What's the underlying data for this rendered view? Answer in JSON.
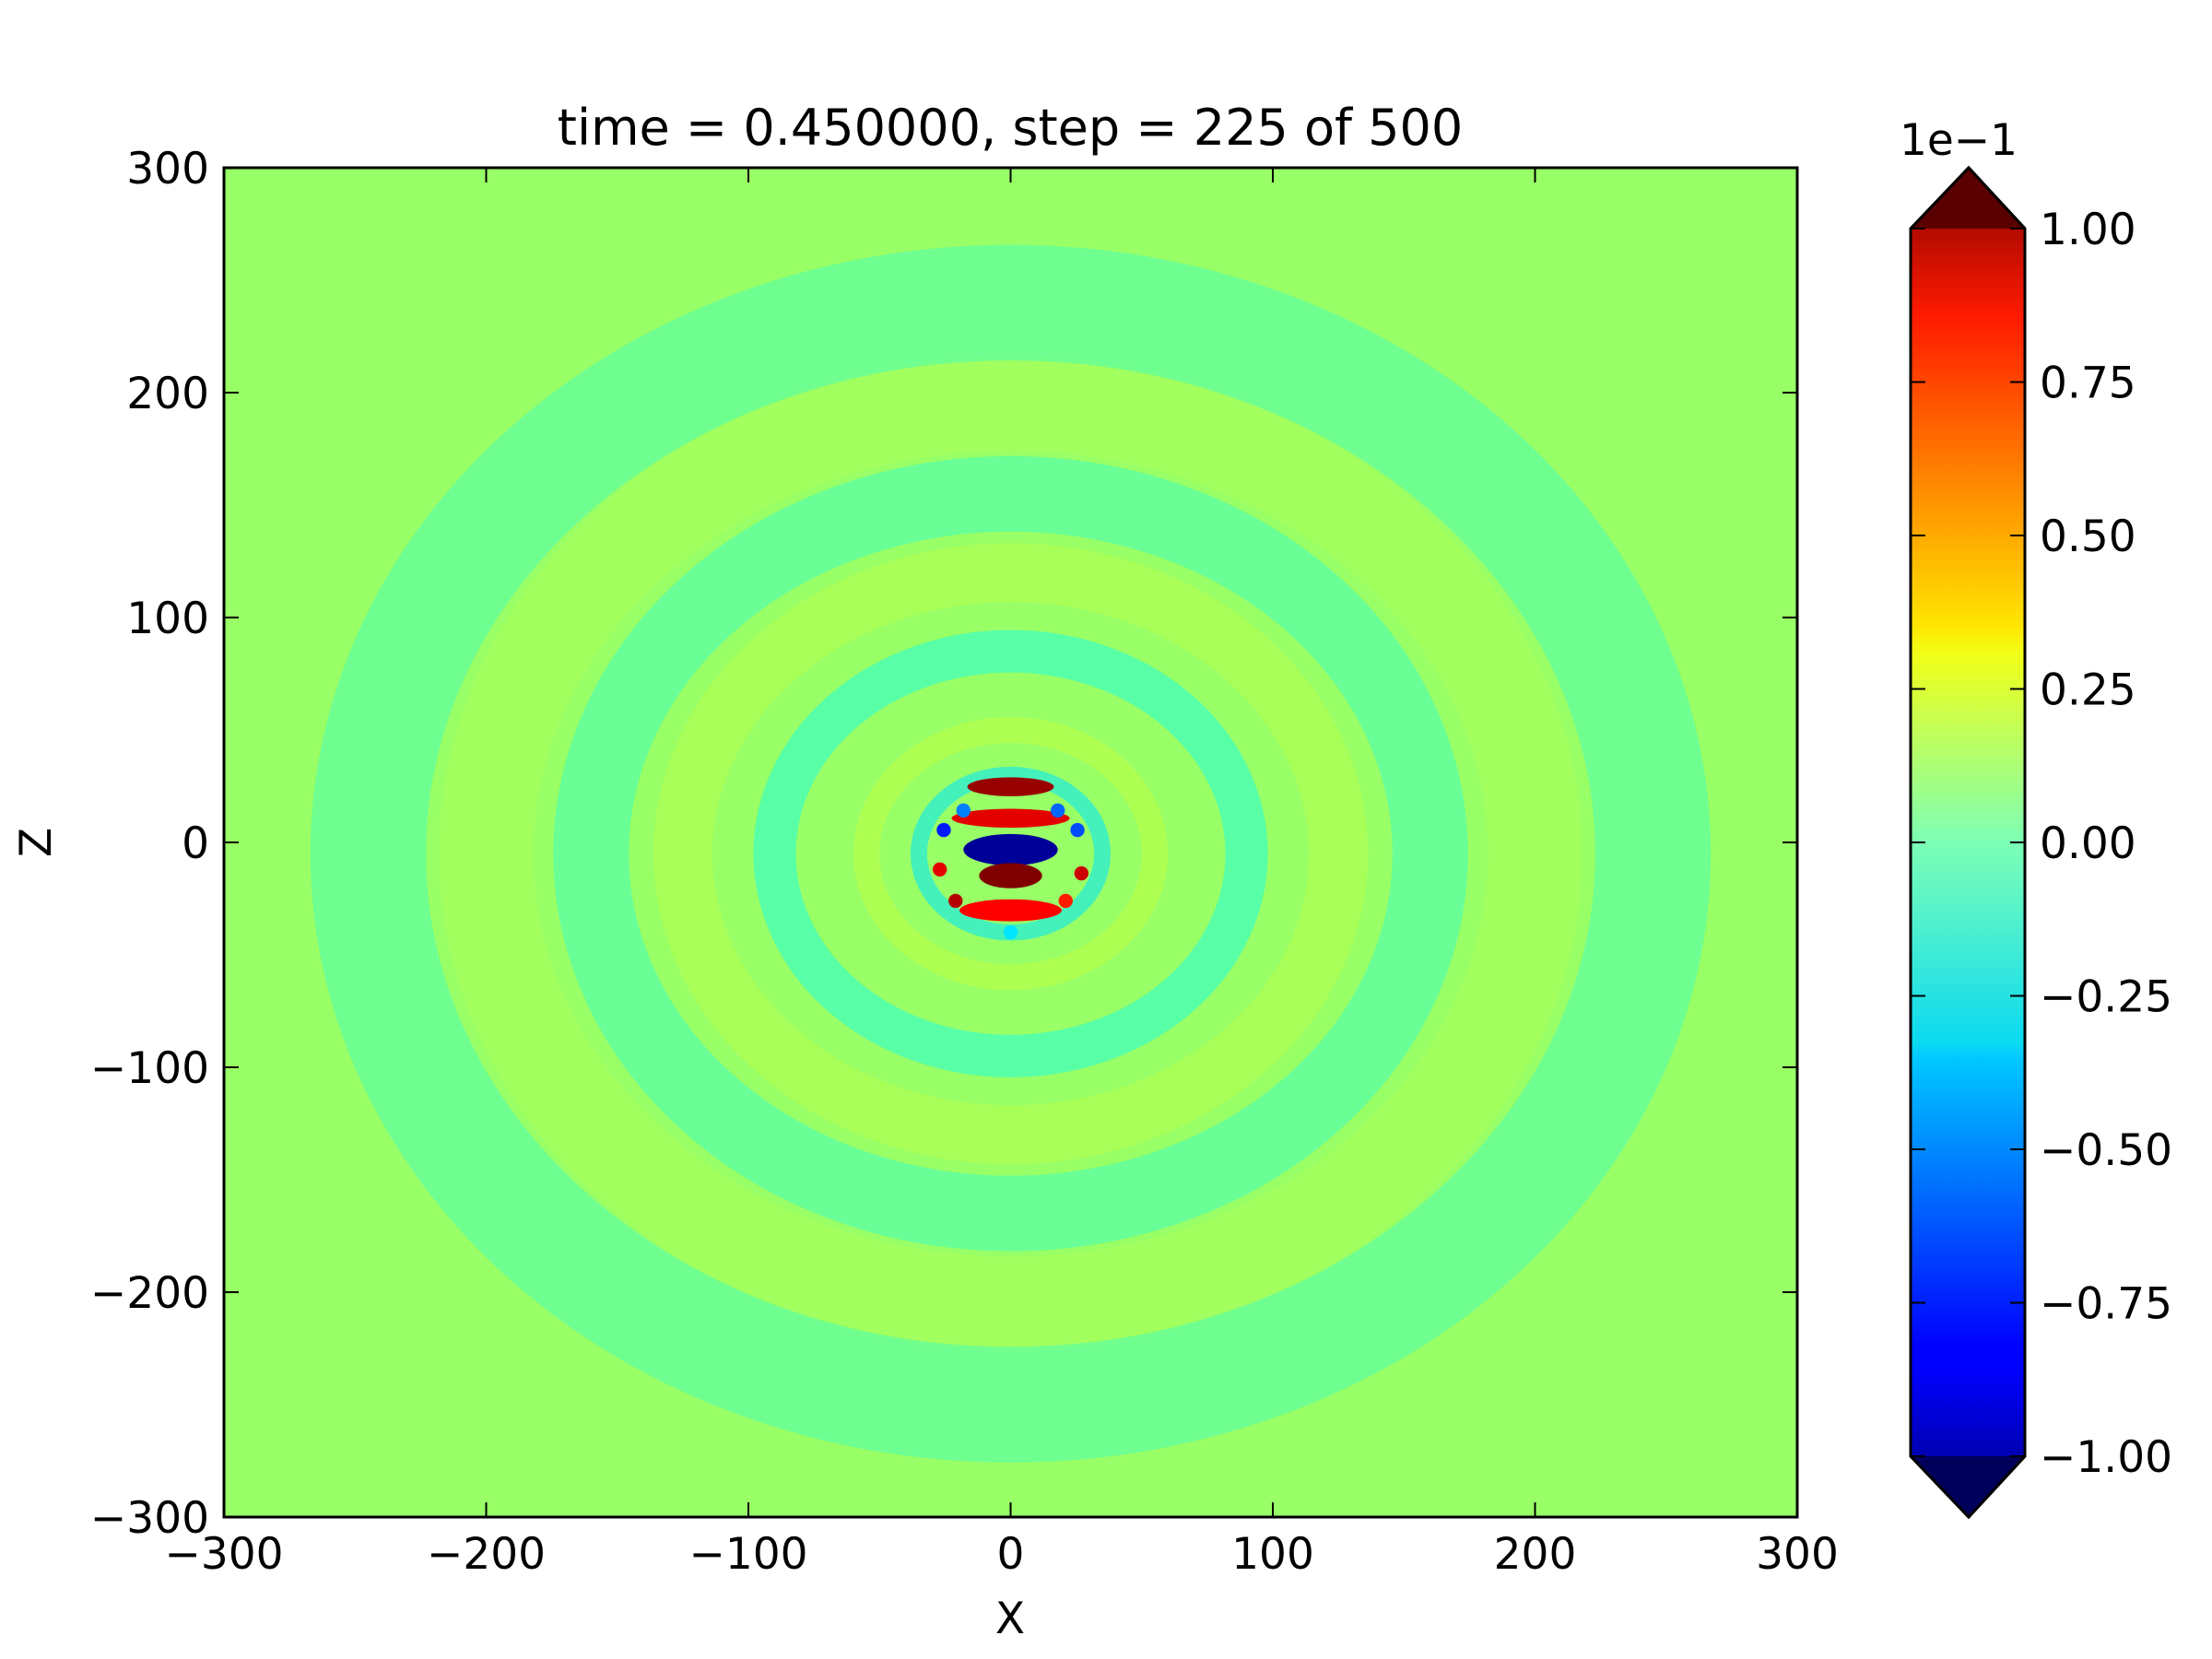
{
  "chart_data": {
    "type": "heatmap",
    "title": "time = 0.450000, step = 225 of 500",
    "xlabel": "X",
    "ylabel": "Z",
    "xlim": [
      -300,
      300
    ],
    "ylim": [
      -300,
      300
    ],
    "x_ticks": [
      -300,
      -200,
      -100,
      0,
      100,
      200,
      300
    ],
    "x_tick_labels": [
      "−300",
      "−200",
      "−100",
      "0",
      "100",
      "200",
      "300"
    ],
    "y_ticks": [
      -300,
      -200,
      -100,
      0,
      100,
      200,
      300
    ],
    "y_tick_labels": [
      "−300",
      "−200",
      "−100",
      "0",
      "100",
      "200",
      "300"
    ],
    "colormap": "jet",
    "colorbar": {
      "range": [
        -1.0,
        1.0
      ],
      "extend": "both",
      "offset_text": "1e−1",
      "ticks": [
        1.0,
        0.75,
        0.5,
        0.25,
        0.0,
        -0.25,
        -0.5,
        -0.75,
        -1.0
      ],
      "tick_labels": [
        "1.00",
        "0.75",
        "0.50",
        "0.25",
        "0.00",
        "−0.25",
        "−0.50",
        "−0.75",
        "−1.00"
      ]
    },
    "grid": false,
    "source_region": {
      "center": [
        0,
        -5
      ],
      "radius": 30,
      "value_range": [
        -1.0,
        1.0
      ]
    },
    "wavefront_rings": [
      {
        "radius": 15,
        "amplitude": -0.22
      },
      {
        "radius": 35,
        "amplitude": -0.3
      },
      {
        "radius": 55,
        "amplitude": 0.12
      },
      {
        "radius": 90,
        "amplitude": -0.18
      },
      {
        "radius": 125,
        "amplitude": 0.1
      },
      {
        "radius": 160,
        "amplitude": -0.12
      },
      {
        "radius": 200,
        "amplitude": 0.08
      },
      {
        "radius": 245,
        "amplitude": -0.1
      }
    ],
    "background_value": 0.05
  }
}
